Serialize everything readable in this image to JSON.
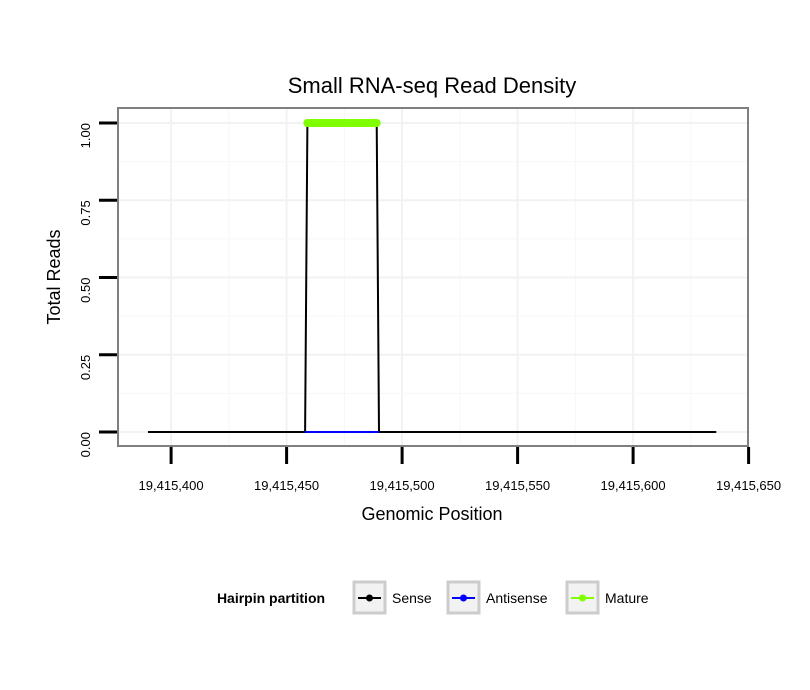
{
  "chart_data": {
    "type": "line",
    "title": "Small RNA-seq Read Density",
    "xlabel": "Genomic Position",
    "ylabel": "Total Reads",
    "xlim": [
      19415390,
      19415636
    ],
    "ylim": [
      0,
      1
    ],
    "x_ticks": [
      19415400,
      19415450,
      19415500,
      19415550,
      19415600,
      19415650
    ],
    "x_tick_labels": [
      "19,415,400",
      "19,415,450",
      "19,415,500",
      "19,415,550",
      "19,415,600",
      "19,415,650"
    ],
    "y_ticks": [
      0,
      0.25,
      0.5,
      0.75,
      1
    ],
    "y_tick_labels": [
      "0.00",
      "0.25",
      "0.50",
      "0.75",
      "1.00"
    ],
    "grid": true,
    "series": [
      {
        "name": "Sense",
        "color": "#000000",
        "x": [
          19415390,
          19415458,
          19415459,
          19415489,
          19415490,
          19415636
        ],
        "y": [
          0,
          0,
          1,
          1,
          0,
          0
        ]
      },
      {
        "name": "Antisense",
        "color": "#0000ff",
        "x": [
          19415458,
          19415490
        ],
        "y": [
          0,
          0
        ]
      },
      {
        "name": "Mature",
        "color": "#7fff00",
        "x": [
          19415459,
          19415489
        ],
        "y": [
          1,
          1
        ]
      }
    ],
    "legend": {
      "title": "Hairpin partition",
      "position": "bottom",
      "entries": [
        "Sense",
        "Antisense",
        "Mature"
      ]
    }
  }
}
